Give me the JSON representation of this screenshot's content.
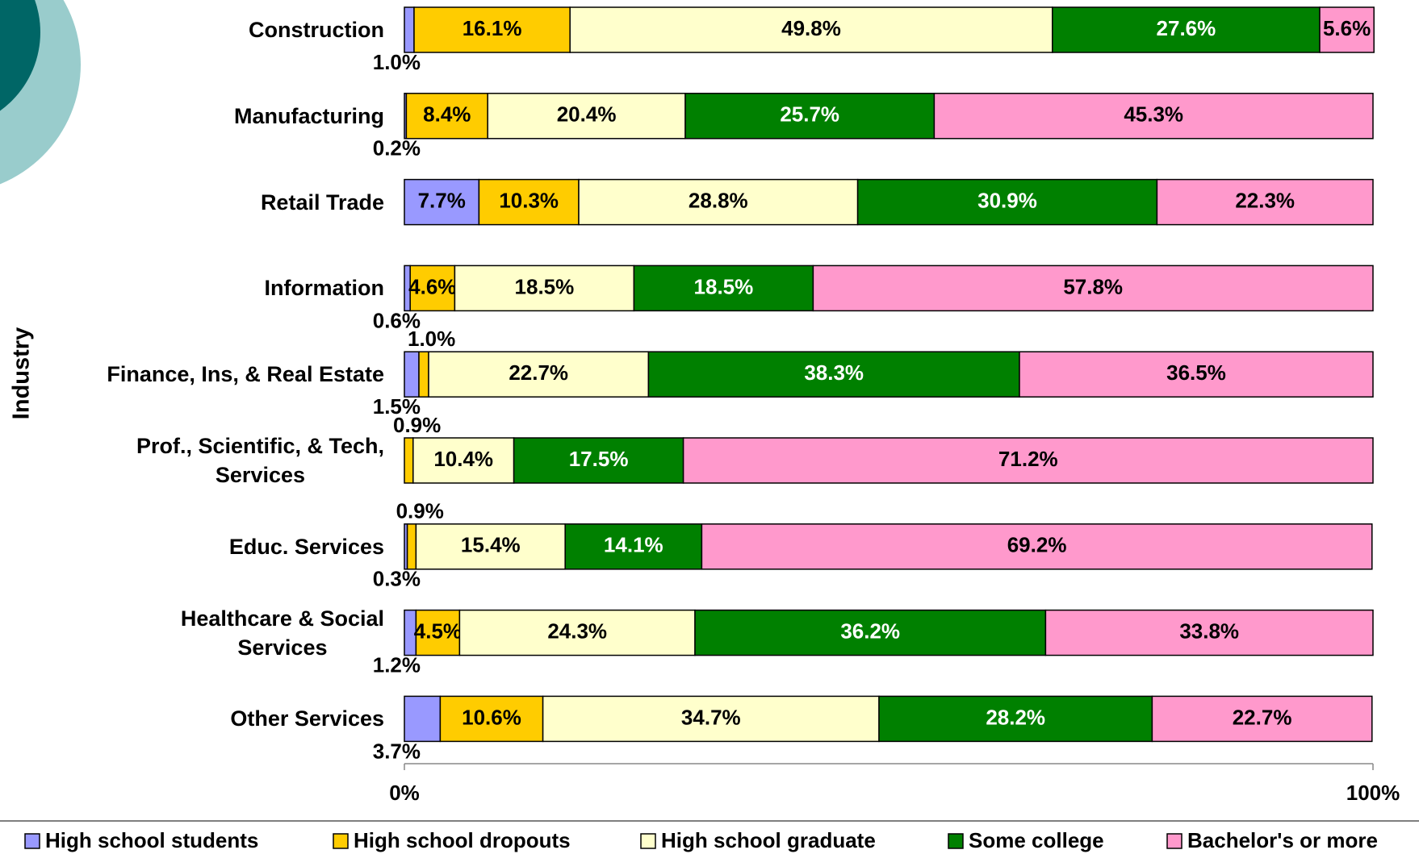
{
  "chart_data": {
    "type": "stacked_bar_horizontal",
    "y_axis_label": "Industry",
    "categories": [
      "Construction",
      "Manufacturing",
      "Retail Trade",
      "Information",
      "Finance, Ins, & Real Estate",
      "Prof., Scientific, & Tech,\nServices",
      "Educ. Services",
      "Healthcare & Social\nServices",
      "Other Services"
    ],
    "series": [
      {
        "name": "High school students",
        "color": "#9999ff",
        "label_color": "#000000",
        "values": [
          1.0,
          0.2,
          7.7,
          0.6,
          1.5,
          0,
          0.3,
          1.2,
          3.7
        ],
        "value_labels": [
          "1.0%",
          "0.2%",
          "7.7%",
          "0.6%",
          "1.5%",
          null,
          "0.3%",
          "1.2%",
          "3.7%"
        ]
      },
      {
        "name": "High school dropouts",
        "color": "#ffcc00",
        "label_color": "#000000",
        "values": [
          16.1,
          8.4,
          10.3,
          4.6,
          1.0,
          0.9,
          0.9,
          4.5,
          10.6
        ],
        "value_labels": [
          "16.1%",
          "8.4%",
          "10.3%",
          "4.6%",
          "1.0%",
          "0.9%",
          "0.9%",
          "4.5%",
          "10.6%"
        ]
      },
      {
        "name": "High school graduate",
        "color": "#ffffcc",
        "label_color": "#000000",
        "values": [
          49.8,
          20.4,
          28.8,
          18.5,
          22.7,
          10.4,
          15.4,
          24.3,
          34.7
        ],
        "value_labels": [
          "49.8%",
          "20.4%",
          "28.8%",
          "18.5%",
          "22.7%",
          "10.4%",
          "15.4%",
          "24.3%",
          "34.7%"
        ]
      },
      {
        "name": "Some college",
        "color": "#008000",
        "label_color": "#ffffff",
        "values": [
          27.6,
          25.7,
          30.9,
          18.5,
          38.3,
          17.5,
          14.1,
          36.2,
          28.2
        ],
        "value_labels": [
          "27.6%",
          "25.7%",
          "30.9%",
          "18.5%",
          "38.3%",
          "17.5%",
          "14.1%",
          "36.2%",
          "28.2%"
        ]
      },
      {
        "name": "Bachelor's or more",
        "color": "#ff99cc",
        "label_color": "#000000",
        "values": [
          5.6,
          45.3,
          22.3,
          57.8,
          36.5,
          71.2,
          69.2,
          33.8,
          22.7
        ],
        "value_labels": [
          "5.6%",
          "45.3%",
          "22.3%",
          "57.8%",
          "36.5%",
          "71.2%",
          "69.2%",
          "33.8%",
          "22.7%"
        ]
      }
    ],
    "xlim": [
      0,
      100
    ],
    "xticks": [
      {
        "value": 0,
        "label": "0%"
      },
      {
        "value": 100,
        "label": "100%"
      }
    ],
    "legend": "bottom"
  }
}
